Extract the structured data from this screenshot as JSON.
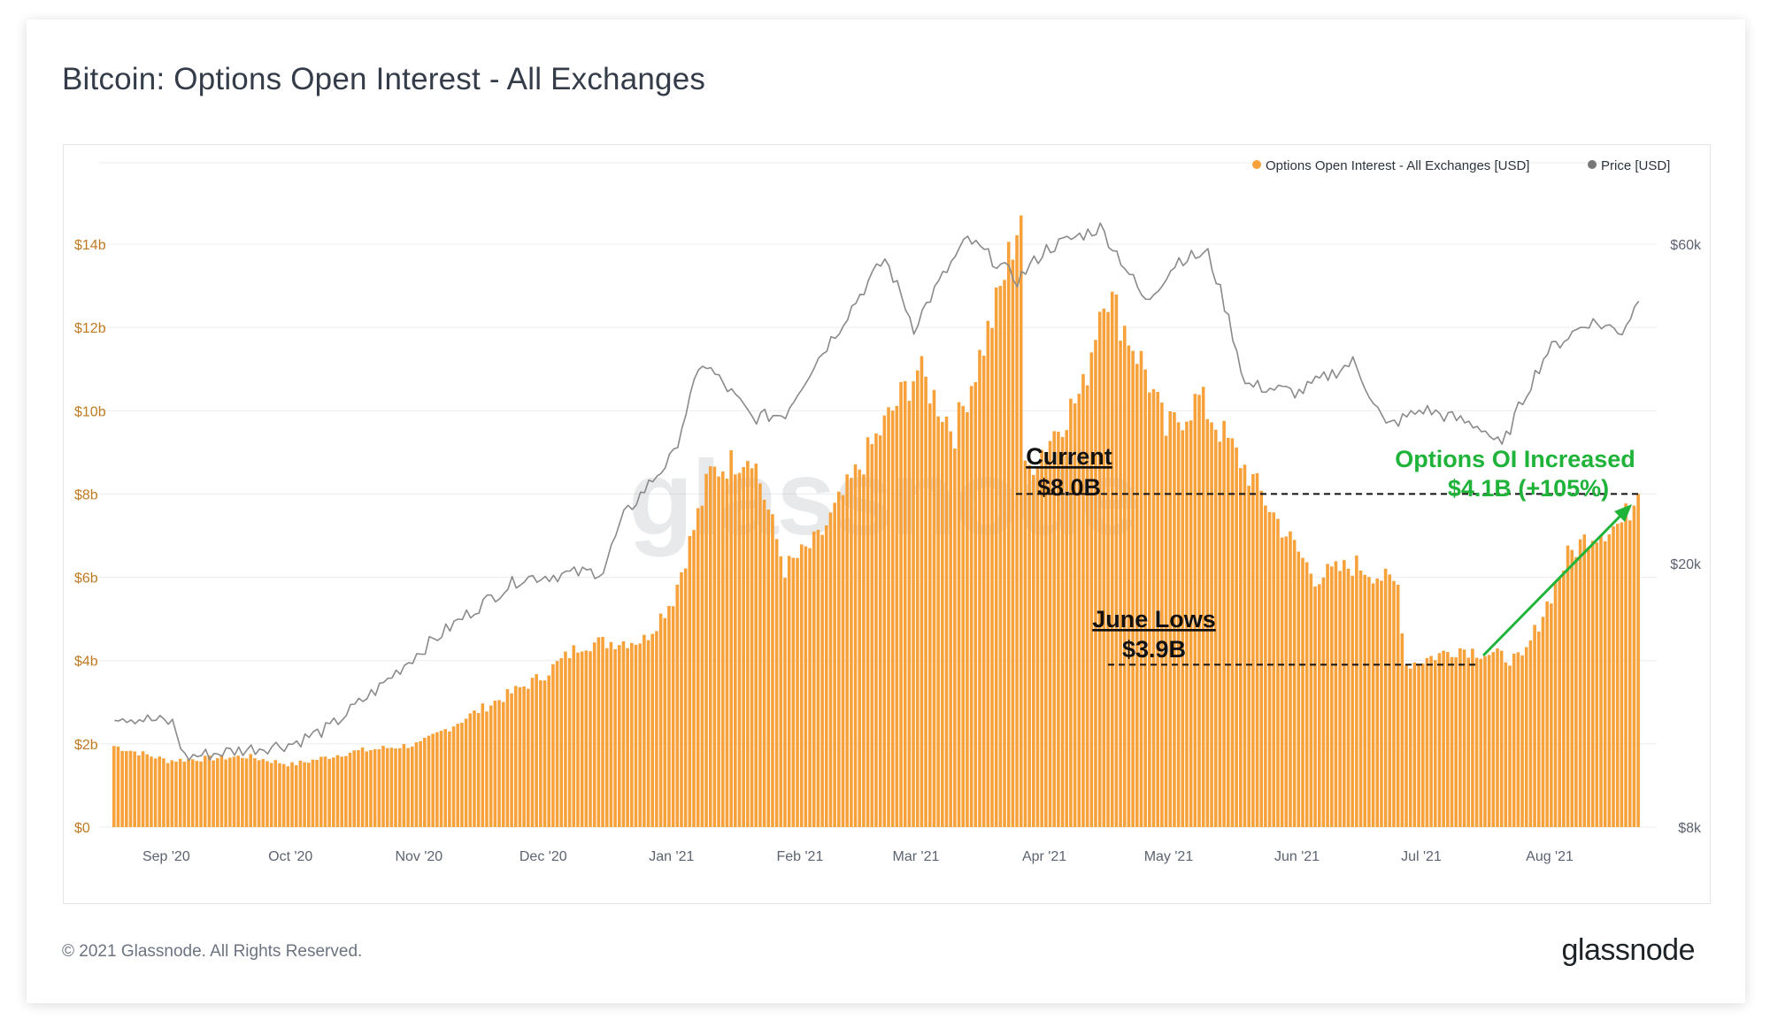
{
  "title": "Bitcoin: Options Open Interest - All Exchanges",
  "footer": {
    "copyright": "© 2021 Glassnode. All Rights Reserved.",
    "brand": "glassnode"
  },
  "watermark": "glassnode",
  "colors": {
    "bar": "#f7a13b",
    "price": "#8a8a8a",
    "annotation_green": "#1fb33a",
    "axis_left": "#bf7a22"
  },
  "legend": [
    {
      "label": "Options Open Interest - All Exchanges [USD]",
      "color": "#f7a13b"
    },
    {
      "label": "Price [USD]",
      "color": "#777777"
    }
  ],
  "annotations": {
    "current_label": "Current",
    "current_value": "$8.0B",
    "lows_label": "June Lows",
    "lows_value": "$3.9B",
    "increase_label": "Options OI Increased",
    "increase_value": "$4.1B (+105%)"
  },
  "chart_data": {
    "type": "bar",
    "title": "Bitcoin: Options Open Interest - All Exchanges",
    "date_range": [
      "2020-08-19",
      "2021-08-22"
    ],
    "x_tick_labels": [
      "Sep '20",
      "Oct '20",
      "Nov '20",
      "Dec '20",
      "Jan '21",
      "Feb '21",
      "Mar '21",
      "Apr '21",
      "May '21",
      "Jun '21",
      "Jul '21",
      "Aug '21"
    ],
    "y_left": {
      "label": "Options Open Interest [USD]",
      "range_billions": [
        0,
        16
      ],
      "ticks": [
        "$0",
        "$2b",
        "$4b",
        "$6b",
        "$8b",
        "$10b",
        "$12b",
        "$14b"
      ],
      "tick_values": [
        0,
        2,
        4,
        6,
        8,
        10,
        12,
        14
      ]
    },
    "y_right": {
      "label": "Price [USD]",
      "scale": "log",
      "range": [
        8000,
        70000
      ],
      "ticks": [
        "$8k",
        "$20k",
        "$60k"
      ],
      "tick_values": [
        8000,
        20000,
        60000
      ]
    },
    "series": [
      {
        "name": "Options Open Interest - All Exchanges [USD]",
        "unit": "billion USD",
        "anchors": [
          [
            "2020-08-19",
            1.95
          ],
          [
            "2020-09-01",
            1.6
          ],
          [
            "2020-09-20",
            1.7
          ],
          [
            "2020-10-01",
            1.5
          ],
          [
            "2020-10-15",
            1.8
          ],
          [
            "2020-11-01",
            2.0
          ],
          [
            "2020-11-15",
            2.8
          ],
          [
            "2020-11-30",
            3.6
          ],
          [
            "2020-12-10",
            4.4
          ],
          [
            "2020-12-25",
            4.5
          ],
          [
            "2021-01-01",
            5.5
          ],
          [
            "2021-01-10",
            8.5
          ],
          [
            "2021-01-20",
            9.0
          ],
          [
            "2021-01-28",
            6.2
          ],
          [
            "2021-02-05",
            6.9
          ],
          [
            "2021-02-20",
            9.5
          ],
          [
            "2021-03-01",
            11.0
          ],
          [
            "2021-03-10",
            9.5
          ],
          [
            "2021-03-20",
            12.5
          ],
          [
            "2021-03-26",
            14.8
          ],
          [
            "2021-03-27",
            8.5
          ],
          [
            "2021-04-10",
            10.5
          ],
          [
            "2021-04-15",
            13.0
          ],
          [
            "2021-04-25",
            11.0
          ],
          [
            "2021-04-30",
            9.5
          ],
          [
            "2021-05-08",
            10.3
          ],
          [
            "2021-05-18",
            8.8
          ],
          [
            "2021-05-28",
            7.2
          ],
          [
            "2021-06-05",
            6.0
          ],
          [
            "2021-06-15",
            6.3
          ],
          [
            "2021-06-25",
            5.8
          ],
          [
            "2021-06-27",
            3.9
          ],
          [
            "2021-07-10",
            4.3
          ],
          [
            "2021-07-20",
            4.1
          ],
          [
            "2021-07-25",
            4.0
          ],
          [
            "2021-08-05",
            6.5
          ],
          [
            "2021-08-10",
            7.0
          ],
          [
            "2021-08-18",
            7.3
          ],
          [
            "2021-08-22",
            8.0
          ]
        ]
      },
      {
        "name": "Price [USD]",
        "unit": "USD",
        "anchors": [
          [
            "2020-08-19",
            11800
          ],
          [
            "2020-09-02",
            11500
          ],
          [
            "2020-09-05",
            10200
          ],
          [
            "2020-10-01",
            10700
          ],
          [
            "2020-10-10",
            11300
          ],
          [
            "2020-10-22",
            13000
          ],
          [
            "2020-11-05",
            15500
          ],
          [
            "2020-11-25",
            19000
          ],
          [
            "2020-12-15",
            19500
          ],
          [
            "2020-12-20",
            23500
          ],
          [
            "2021-01-01",
            29000
          ],
          [
            "2021-01-08",
            40000
          ],
          [
            "2021-01-20",
            33000
          ],
          [
            "2021-01-28",
            33500
          ],
          [
            "2021-02-10",
            45000
          ],
          [
            "2021-02-21",
            57000
          ],
          [
            "2021-02-28",
            45000
          ],
          [
            "2021-03-13",
            61000
          ],
          [
            "2021-03-25",
            53000
          ],
          [
            "2021-04-01",
            59000
          ],
          [
            "2021-04-14",
            63500
          ],
          [
            "2021-04-25",
            49000
          ],
          [
            "2021-05-03",
            57000
          ],
          [
            "2021-05-10",
            58000
          ],
          [
            "2021-05-19",
            37000
          ],
          [
            "2021-06-01",
            36000
          ],
          [
            "2021-06-14",
            40000
          ],
          [
            "2021-06-22",
            32000
          ],
          [
            "2021-07-01",
            34000
          ],
          [
            "2021-07-15",
            32000
          ],
          [
            "2021-07-20",
            29800
          ],
          [
            "2021-07-31",
            41500
          ],
          [
            "2021-08-10",
            46000
          ],
          [
            "2021-08-18",
            44500
          ],
          [
            "2021-08-22",
            49300
          ]
        ]
      }
    ],
    "reference_lines": [
      {
        "label": "Current $8.0B",
        "value": 8.0
      },
      {
        "label": "June Lows $3.9B",
        "value": 3.9
      }
    ]
  }
}
